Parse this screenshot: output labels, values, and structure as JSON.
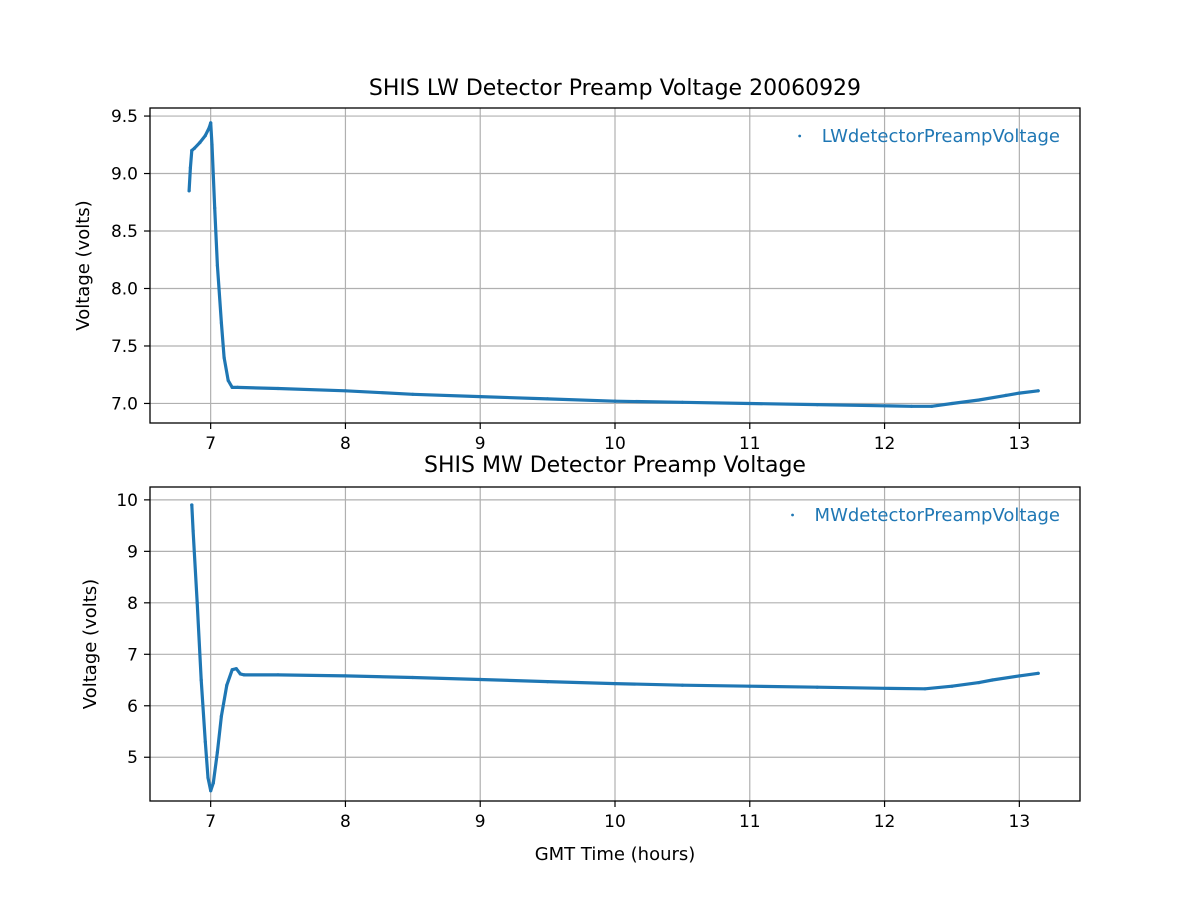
{
  "chart_data": [
    {
      "type": "scatter",
      "title": "SHIS LW Detector Preamp Voltage 20060929",
      "xlabel": "",
      "ylabel": "Voltage (volts)",
      "xlim": [
        6.55,
        13.45
      ],
      "ylim": [
        6.83,
        9.57
      ],
      "xticks": [
        "7",
        "8",
        "9",
        "10",
        "11",
        "12",
        "13"
      ],
      "yticks": [
        "7.0",
        "7.5",
        "8.0",
        "8.5",
        "9.0",
        "9.5"
      ],
      "grid": true,
      "legend_position": "top-right",
      "series": [
        {
          "name": "LWdetectorPreampVoltage",
          "color": "#1f77b4",
          "x": [
            6.84,
            6.85,
            6.86,
            6.88,
            6.92,
            6.96,
            6.99,
            7.0,
            7.01,
            7.03,
            7.05,
            7.08,
            7.1,
            7.13,
            7.16,
            7.2,
            7.5,
            8.0,
            8.5,
            9.0,
            9.5,
            10.0,
            10.5,
            11.0,
            11.5,
            12.0,
            12.2,
            12.35,
            12.5,
            12.7,
            12.9,
            13.0,
            13.14
          ],
          "y": [
            8.85,
            9.05,
            9.2,
            9.22,
            9.27,
            9.33,
            9.4,
            9.44,
            9.25,
            8.7,
            8.2,
            7.7,
            7.4,
            7.2,
            7.14,
            7.14,
            7.13,
            7.11,
            7.08,
            7.06,
            7.04,
            7.02,
            7.01,
            7.0,
            6.99,
            6.98,
            6.975,
            6.975,
            7.0,
            7.03,
            7.07,
            7.09,
            7.11
          ]
        }
      ]
    },
    {
      "type": "scatter",
      "title": "SHIS MW Detector Preamp Voltage",
      "xlabel": "GMT Time (hours)",
      "ylabel": "Voltage (volts)",
      "xlim": [
        6.55,
        13.45
      ],
      "ylim": [
        4.15,
        10.25
      ],
      "xticks": [
        "7",
        "8",
        "9",
        "10",
        "11",
        "12",
        "13"
      ],
      "yticks": [
        "5",
        "6",
        "7",
        "8",
        "9",
        "10"
      ],
      "grid": true,
      "legend_position": "top-right",
      "series": [
        {
          "name": "MWdetectorPreampVoltage",
          "color": "#1f77b4",
          "x": [
            6.86,
            6.87,
            6.9,
            6.93,
            6.96,
            6.98,
            7.0,
            7.02,
            7.05,
            7.08,
            7.12,
            7.16,
            7.19,
            7.22,
            7.25,
            7.5,
            8.0,
            8.5,
            9.0,
            9.5,
            10.0,
            10.5,
            11.0,
            11.5,
            12.0,
            12.3,
            12.5,
            12.7,
            12.8,
            13.0,
            13.14
          ],
          "y": [
            9.9,
            9.4,
            8.0,
            6.5,
            5.3,
            4.6,
            4.35,
            4.5,
            5.1,
            5.8,
            6.4,
            6.7,
            6.72,
            6.62,
            6.6,
            6.6,
            6.58,
            6.55,
            6.51,
            6.47,
            6.43,
            6.4,
            6.38,
            6.36,
            6.34,
            6.33,
            6.38,
            6.45,
            6.5,
            6.58,
            6.63
          ]
        }
      ]
    }
  ]
}
